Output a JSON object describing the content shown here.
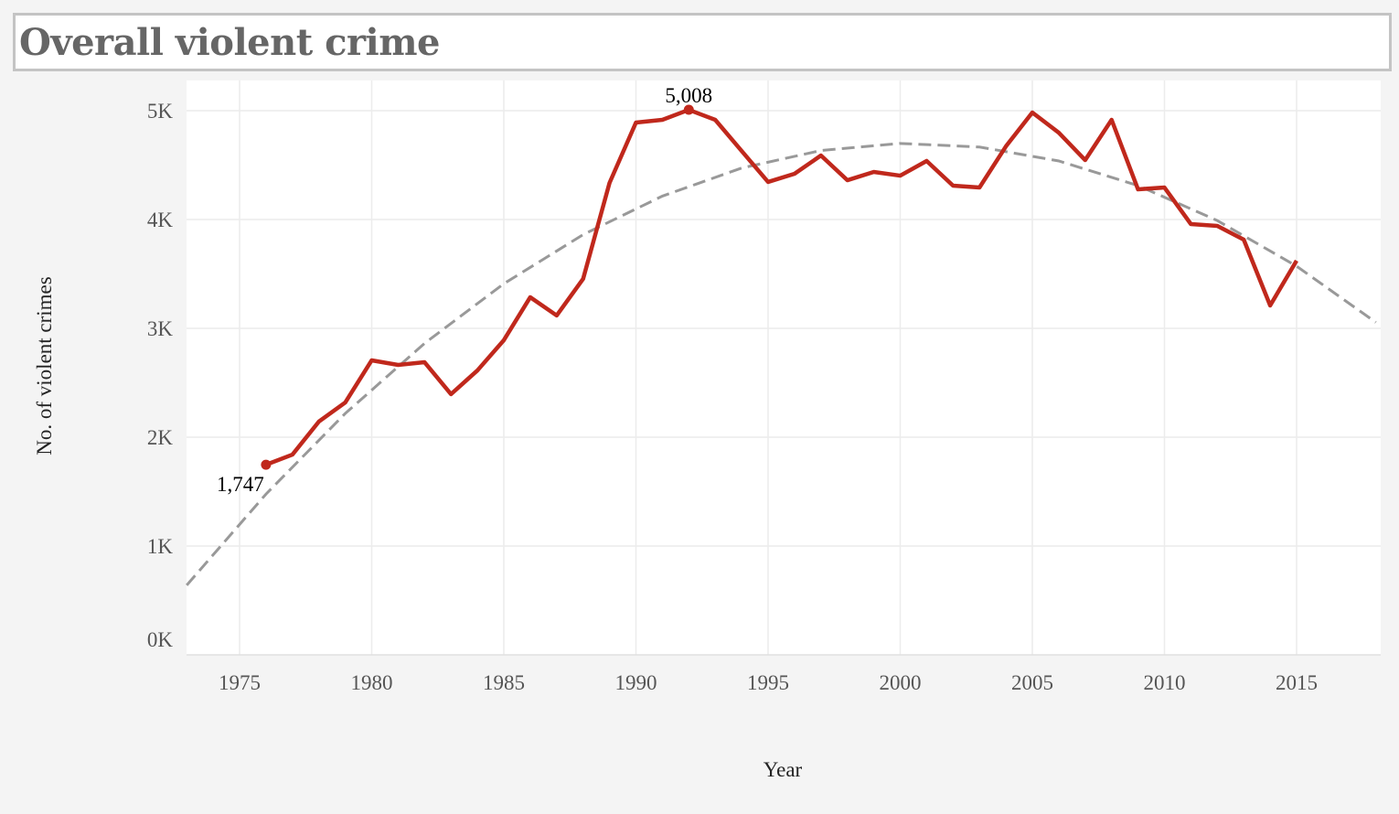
{
  "chart_data": {
    "type": "line",
    "title": "Overall violent crime",
    "xlabel": "Year",
    "ylabel": "No. of violent crimes",
    "xlim": [
      1973,
      2018
    ],
    "ylim": [
      0,
      5300
    ],
    "grid": true,
    "x_ticks": [
      1975,
      1980,
      1985,
      1990,
      1995,
      2000,
      2005,
      2010,
      2015
    ],
    "x_tick_labels": [
      "1975",
      "1980",
      "1985",
      "1990",
      "1995",
      "2000",
      "2005",
      "2010",
      "2015"
    ],
    "y_ticks": [
      0,
      1000,
      2000,
      3000,
      4000,
      5000
    ],
    "y_tick_labels": [
      "0K",
      "1K",
      "2K",
      "3K",
      "4K",
      "5K"
    ],
    "series": [
      {
        "color": "#c0281c",
        "x": [
          1976,
          1977,
          1978,
          1979,
          1980,
          1981,
          1982,
          1983,
          1984,
          1985,
          1986,
          1987,
          1988,
          1989,
          1990,
          1991,
          1992,
          1993,
          1994,
          1995,
          1996,
          1997,
          1998,
          1999,
          2000,
          2001,
          2002,
          2003,
          2004,
          2005,
          2006,
          2007,
          2008,
          2009,
          2010,
          2011,
          2012,
          2013,
          2014,
          2015
        ],
        "y": [
          1747,
          1840,
          2143,
          2319,
          2706,
          2664,
          2689,
          2395,
          2613,
          2891,
          3286,
          3118,
          3454,
          4336,
          4891,
          4916,
          5008,
          4916,
          4630,
          4345,
          4420,
          4588,
          4361,
          4437,
          4403,
          4538,
          4311,
          4294,
          4672,
          4983,
          4798,
          4546,
          4916,
          4277,
          4294,
          3958,
          3941,
          3815,
          3210,
          3622
        ]
      }
    ],
    "trend": {
      "color": "#999999",
      "style": "dashed",
      "x": [
        1973,
        1976,
        1979,
        1982,
        1985,
        1988,
        1991,
        1994,
        1997,
        2000,
        2003,
        2006,
        2009,
        2012,
        2015,
        2018
      ],
      "y": [
        640,
        1477,
        2218,
        2862,
        3410,
        3861,
        4215,
        4473,
        4634,
        4699,
        4666,
        4538,
        4312,
        3990,
        3571,
        3055
      ]
    },
    "annotations": [
      {
        "x": 1976,
        "y": 1747,
        "text": "1,747"
      },
      {
        "x": 1992,
        "y": 5008,
        "text": "5,008"
      }
    ]
  }
}
